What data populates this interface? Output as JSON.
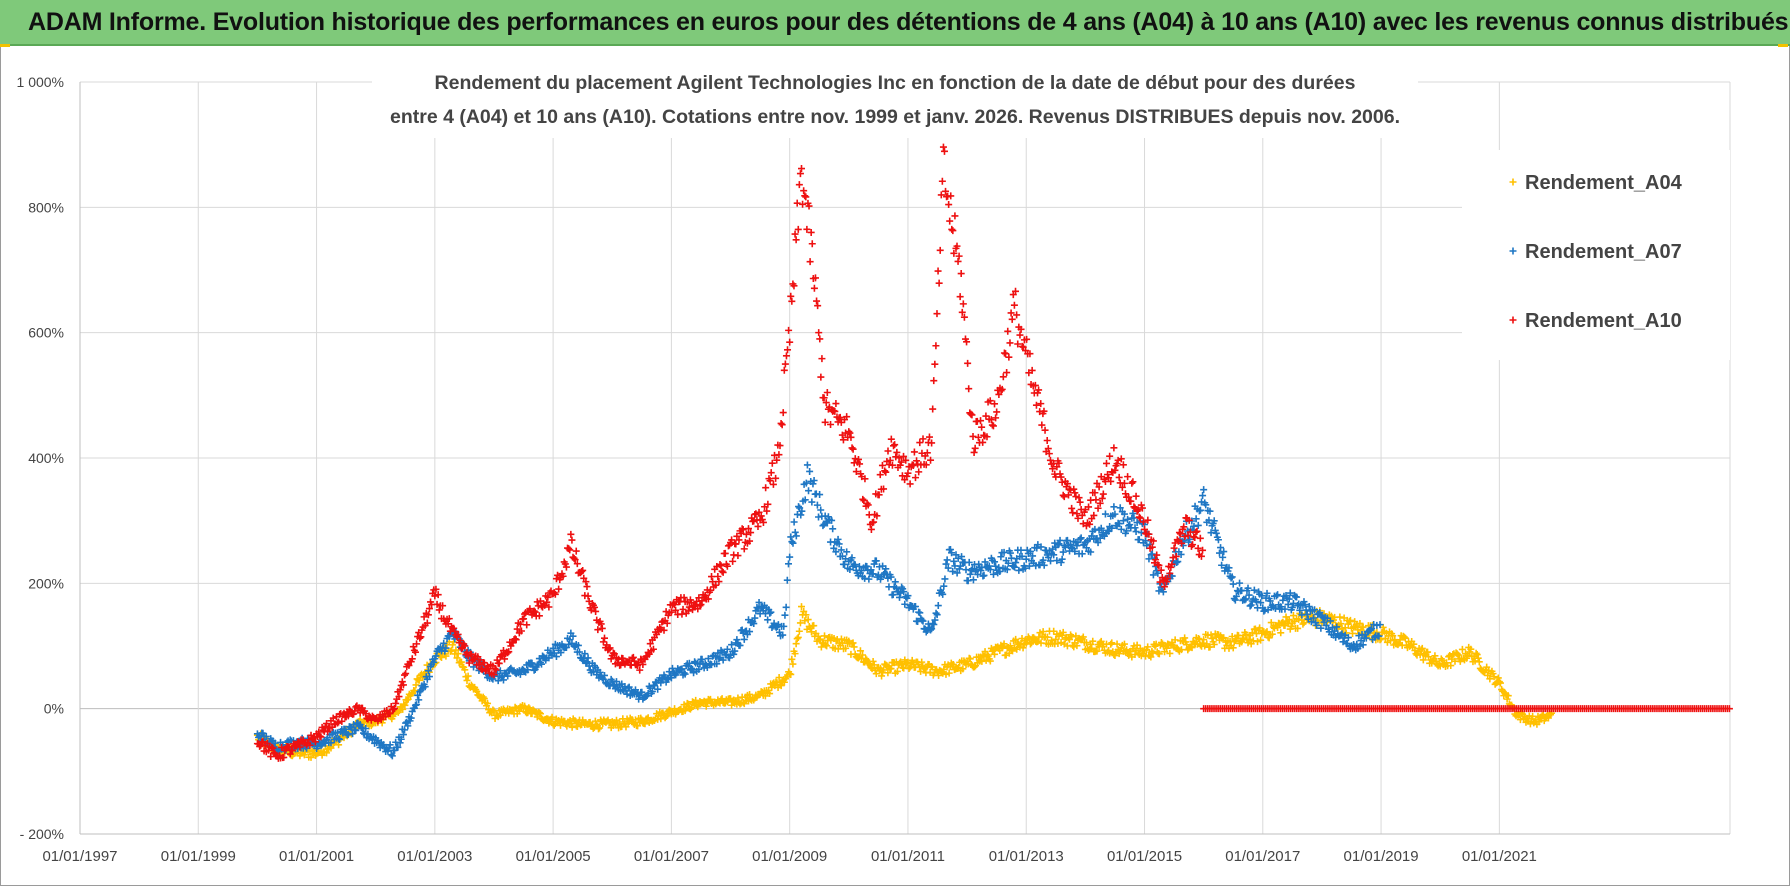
{
  "banner": {
    "title": "ADAM Informe. Evolution historique des performances en euros pour des détentions de 4 ans (A04) à 10 ans (A10) avec les revenus connus distribués"
  },
  "chart_data": {
    "type": "scatter",
    "title_line1": "Rendement du placement Agilent Technologies Inc en fonction de la date de début pour des durées",
    "title_line2": "entre 4 (A04) et 10 ans (A10).  Cotations entre nov. 1999 et janv. 2026. Revenus DISTRIBUES  depuis nov. 2006.",
    "xlabel": "",
    "ylabel": "",
    "xlim": [
      1997.0,
      2024.9
    ],
    "ylim": [
      -200,
      1000
    ],
    "x_ticks": [
      1997,
      1999,
      2001,
      2003,
      2005,
      2007,
      2009,
      2011,
      2013,
      2015,
      2017,
      2019,
      2021
    ],
    "x_tick_labels": [
      "01/01/1997",
      "01/01/1999",
      "01/01/2001",
      "01/01/2003",
      "01/01/2005",
      "01/01/2007",
      "01/01/2009",
      "01/01/2011",
      "01/01/2013",
      "01/01/2015",
      "01/01/2017",
      "01/01/2019",
      "01/01/2021"
    ],
    "y_ticks": [
      -200,
      0,
      200,
      400,
      600,
      800,
      1000
    ],
    "y_tick_labels": [
      "- 200%",
      "0%",
      "200%",
      "400%",
      "600%",
      "800%",
      "1 000%"
    ],
    "grid": true,
    "legend_position": "top-right",
    "series": [
      {
        "name": "Rendement_A04",
        "color": "#ffc000",
        "points": [
          [
            2000.0,
            -45
          ],
          [
            2000.3,
            -65
          ],
          [
            2000.7,
            -70
          ],
          [
            2001.0,
            -70
          ],
          [
            2001.3,
            -55
          ],
          [
            2001.7,
            -25
          ],
          [
            2002.0,
            -20
          ],
          [
            2002.4,
            -5
          ],
          [
            2002.7,
            40
          ],
          [
            2003.0,
            80
          ],
          [
            2003.3,
            100
          ],
          [
            2003.6,
            40
          ],
          [
            2004.0,
            -10
          ],
          [
            2004.5,
            0
          ],
          [
            2005.0,
            -20
          ],
          [
            2005.5,
            -25
          ],
          [
            2006.0,
            -25
          ],
          [
            2006.5,
            -20
          ],
          [
            2007.0,
            -5
          ],
          [
            2007.5,
            10
          ],
          [
            2008.0,
            10
          ],
          [
            2008.5,
            20
          ],
          [
            2009.0,
            55
          ],
          [
            2009.2,
            150
          ],
          [
            2009.5,
            110
          ],
          [
            2010.0,
            100
          ],
          [
            2010.5,
            60
          ],
          [
            2011.0,
            70
          ],
          [
            2011.5,
            60
          ],
          [
            2012.0,
            70
          ],
          [
            2012.5,
            90
          ],
          [
            2013.0,
            110
          ],
          [
            2013.5,
            115
          ],
          [
            2014.0,
            105
          ],
          [
            2014.5,
            95
          ],
          [
            2015.0,
            90
          ],
          [
            2015.5,
            100
          ],
          [
            2016.0,
            110
          ],
          [
            2016.5,
            105
          ],
          [
            2017.0,
            120
          ],
          [
            2017.5,
            140
          ],
          [
            2018.0,
            145
          ],
          [
            2018.5,
            130
          ],
          [
            2019.0,
            120
          ],
          [
            2019.5,
            100
          ],
          [
            2020.0,
            70
          ],
          [
            2020.5,
            90
          ],
          [
            2021.0,
            40
          ],
          [
            2021.3,
            -10
          ],
          [
            2021.6,
            -20
          ],
          [
            2021.9,
            -10
          ]
        ]
      },
      {
        "name": "Rendement_A07",
        "color": "#1f77c4",
        "points": [
          [
            2000.0,
            -40
          ],
          [
            2000.3,
            -60
          ],
          [
            2000.7,
            -55
          ],
          [
            2001.0,
            -55
          ],
          [
            2001.3,
            -45
          ],
          [
            2001.7,
            -30
          ],
          [
            2002.0,
            -50
          ],
          [
            2002.3,
            -70
          ],
          [
            2002.6,
            -10
          ],
          [
            2003.0,
            80
          ],
          [
            2003.3,
            120
          ],
          [
            2003.6,
            80
          ],
          [
            2004.0,
            50
          ],
          [
            2004.5,
            60
          ],
          [
            2005.0,
            90
          ],
          [
            2005.3,
            110
          ],
          [
            2005.7,
            60
          ],
          [
            2006.0,
            40
          ],
          [
            2006.5,
            20
          ],
          [
            2007.0,
            55
          ],
          [
            2007.5,
            70
          ],
          [
            2008.0,
            90
          ],
          [
            2008.5,
            160
          ],
          [
            2008.9,
            120
          ],
          [
            2009.0,
            250
          ],
          [
            2009.3,
            370
          ],
          [
            2009.6,
            300
          ],
          [
            2010.0,
            230
          ],
          [
            2010.5,
            220
          ],
          [
            2011.0,
            170
          ],
          [
            2011.4,
            120
          ],
          [
            2011.7,
            240
          ],
          [
            2012.0,
            220
          ],
          [
            2012.5,
            230
          ],
          [
            2013.0,
            240
          ],
          [
            2013.5,
            250
          ],
          [
            2014.0,
            260
          ],
          [
            2014.5,
            310
          ],
          [
            2015.0,
            280
          ],
          [
            2015.3,
            180
          ],
          [
            2015.6,
            260
          ],
          [
            2016.0,
            330
          ],
          [
            2016.5,
            190
          ],
          [
            2017.0,
            170
          ],
          [
            2017.5,
            170
          ],
          [
            2018.0,
            140
          ],
          [
            2018.5,
            100
          ],
          [
            2019.0,
            130
          ]
        ]
      },
      {
        "name": "Rendement_A10",
        "color": "#ee1111",
        "points": [
          [
            2000.0,
            -50
          ],
          [
            2000.3,
            -75
          ],
          [
            2000.7,
            -60
          ],
          [
            2001.0,
            -45
          ],
          [
            2001.3,
            -20
          ],
          [
            2001.7,
            0
          ],
          [
            2002.0,
            -20
          ],
          [
            2002.3,
            0
          ],
          [
            2002.6,
            80
          ],
          [
            2003.0,
            180
          ],
          [
            2003.3,
            120
          ],
          [
            2003.6,
            80
          ],
          [
            2004.0,
            60
          ],
          [
            2004.5,
            140
          ],
          [
            2005.0,
            180
          ],
          [
            2005.3,
            260
          ],
          [
            2005.7,
            150
          ],
          [
            2006.0,
            80
          ],
          [
            2006.5,
            70
          ],
          [
            2007.0,
            160
          ],
          [
            2007.5,
            170
          ],
          [
            2008.0,
            250
          ],
          [
            2008.5,
            300
          ],
          [
            2008.8,
            400
          ],
          [
            2009.0,
            600
          ],
          [
            2009.2,
            860
          ],
          [
            2009.4,
            700
          ],
          [
            2009.6,
            480
          ],
          [
            2010.0,
            440
          ],
          [
            2010.4,
            300
          ],
          [
            2010.7,
            420
          ],
          [
            2011.0,
            380
          ],
          [
            2011.4,
            420
          ],
          [
            2011.6,
            860
          ],
          [
            2011.9,
            680
          ],
          [
            2012.1,
            430
          ],
          [
            2012.5,
            480
          ],
          [
            2012.8,
            640
          ],
          [
            2013.1,
            520
          ],
          [
            2013.5,
            380
          ],
          [
            2014.0,
            300
          ],
          [
            2014.5,
            400
          ],
          [
            2015.0,
            300
          ],
          [
            2015.3,
            200
          ],
          [
            2015.7,
            290
          ],
          [
            2016.0,
            250
          ]
        ]
      }
    ],
    "flat_zero_segment": {
      "series": "Rendement_A10",
      "x_start": 2016.0,
      "x_end": 2024.9,
      "value": 0
    }
  }
}
